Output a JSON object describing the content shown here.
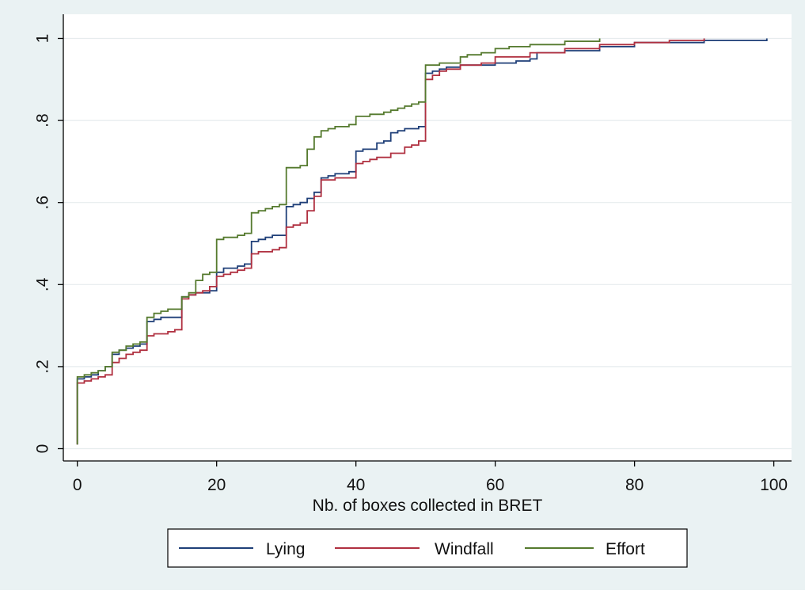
{
  "chart_data": {
    "type": "line",
    "title": "",
    "xlabel": "Nb. of boxes collected in BRET",
    "ylabel": "",
    "xlim": [
      0,
      100
    ],
    "ylim": [
      0,
      1
    ],
    "x_ticks": [
      0,
      20,
      40,
      60,
      80,
      100
    ],
    "x_tick_labels": [
      "0",
      "20",
      "40",
      "60",
      "80",
      "100"
    ],
    "y_ticks": [
      0,
      0.2,
      0.4,
      0.6,
      0.8,
      1
    ],
    "y_tick_labels": [
      "0",
      ".2",
      ".4",
      ".6",
      ".8",
      "1"
    ],
    "grid": "horizontal",
    "legend_position": "bottom",
    "series": [
      {
        "name": "Lying",
        "color": "#1f3f78",
        "x": [
          0,
          0,
          1,
          2,
          3,
          4,
          5,
          6,
          7,
          8,
          9,
          10,
          11,
          12,
          15,
          16,
          17,
          18,
          19,
          20,
          21,
          22,
          23,
          24,
          25,
          26,
          27,
          28,
          29,
          30,
          31,
          32,
          33,
          34,
          35,
          36,
          37,
          38,
          39,
          40,
          41,
          42,
          43,
          44,
          45,
          46,
          47,
          48,
          49,
          50,
          51,
          52,
          53,
          55,
          57,
          60,
          63,
          65,
          66,
          70,
          75,
          80,
          90,
          99
        ],
        "y": [
          0.01,
          0.17,
          0.175,
          0.18,
          0.19,
          0.2,
          0.23,
          0.24,
          0.245,
          0.25,
          0.255,
          0.31,
          0.315,
          0.32,
          0.37,
          0.375,
          0.38,
          0.38,
          0.385,
          0.43,
          0.44,
          0.44,
          0.445,
          0.45,
          0.505,
          0.51,
          0.515,
          0.52,
          0.52,
          0.59,
          0.595,
          0.6,
          0.61,
          0.625,
          0.66,
          0.665,
          0.67,
          0.67,
          0.675,
          0.725,
          0.73,
          0.73,
          0.745,
          0.75,
          0.77,
          0.775,
          0.78,
          0.78,
          0.785,
          0.915,
          0.92,
          0.925,
          0.93,
          0.935,
          0.935,
          0.94,
          0.945,
          0.95,
          0.965,
          0.97,
          0.98,
          0.99,
          0.995,
          1.0
        ]
      },
      {
        "name": "Windfall",
        "color": "#b03040",
        "x": [
          0,
          0,
          1,
          2,
          3,
          4,
          5,
          6,
          7,
          8,
          9,
          10,
          11,
          12,
          13,
          14,
          15,
          16,
          17,
          18,
          19,
          20,
          21,
          22,
          23,
          24,
          25,
          26,
          27,
          28,
          29,
          30,
          31,
          32,
          33,
          34,
          35,
          36,
          37,
          38,
          39,
          40,
          41,
          42,
          43,
          44,
          45,
          46,
          47,
          48,
          49,
          50,
          51,
          52,
          53,
          55,
          58,
          60,
          65,
          70,
          75,
          80,
          85,
          90
        ],
        "y": [
          0.01,
          0.16,
          0.165,
          0.17,
          0.175,
          0.18,
          0.21,
          0.22,
          0.23,
          0.235,
          0.24,
          0.275,
          0.28,
          0.28,
          0.285,
          0.29,
          0.365,
          0.375,
          0.38,
          0.385,
          0.395,
          0.42,
          0.425,
          0.43,
          0.435,
          0.44,
          0.475,
          0.48,
          0.48,
          0.485,
          0.49,
          0.54,
          0.545,
          0.55,
          0.58,
          0.615,
          0.655,
          0.655,
          0.66,
          0.66,
          0.66,
          0.695,
          0.7,
          0.705,
          0.71,
          0.71,
          0.72,
          0.72,
          0.735,
          0.74,
          0.75,
          0.9,
          0.91,
          0.92,
          0.925,
          0.935,
          0.94,
          0.955,
          0.965,
          0.975,
          0.985,
          0.99,
          0.995,
          1.0
        ]
      },
      {
        "name": "Effort",
        "color": "#557a2e",
        "x": [
          0,
          0,
          1,
          2,
          3,
          4,
          5,
          6,
          7,
          8,
          9,
          10,
          11,
          12,
          13,
          15,
          16,
          17,
          18,
          19,
          20,
          21,
          22,
          23,
          24,
          25,
          26,
          27,
          28,
          29,
          30,
          31,
          32,
          33,
          34,
          35,
          36,
          37,
          38,
          39,
          40,
          41,
          42,
          43,
          44,
          45,
          46,
          47,
          48,
          49,
          50,
          51,
          52,
          53,
          55,
          56,
          58,
          60,
          62,
          65,
          70,
          75
        ],
        "y": [
          0.01,
          0.175,
          0.18,
          0.185,
          0.19,
          0.2,
          0.235,
          0.24,
          0.25,
          0.255,
          0.26,
          0.32,
          0.33,
          0.335,
          0.34,
          0.37,
          0.38,
          0.41,
          0.425,
          0.43,
          0.51,
          0.515,
          0.515,
          0.52,
          0.525,
          0.575,
          0.58,
          0.585,
          0.59,
          0.595,
          0.685,
          0.685,
          0.69,
          0.73,
          0.76,
          0.775,
          0.78,
          0.785,
          0.785,
          0.79,
          0.81,
          0.81,
          0.815,
          0.815,
          0.82,
          0.825,
          0.83,
          0.835,
          0.84,
          0.845,
          0.935,
          0.935,
          0.94,
          0.94,
          0.955,
          0.96,
          0.965,
          0.975,
          0.98,
          0.985,
          0.993,
          1.0
        ]
      }
    ]
  }
}
